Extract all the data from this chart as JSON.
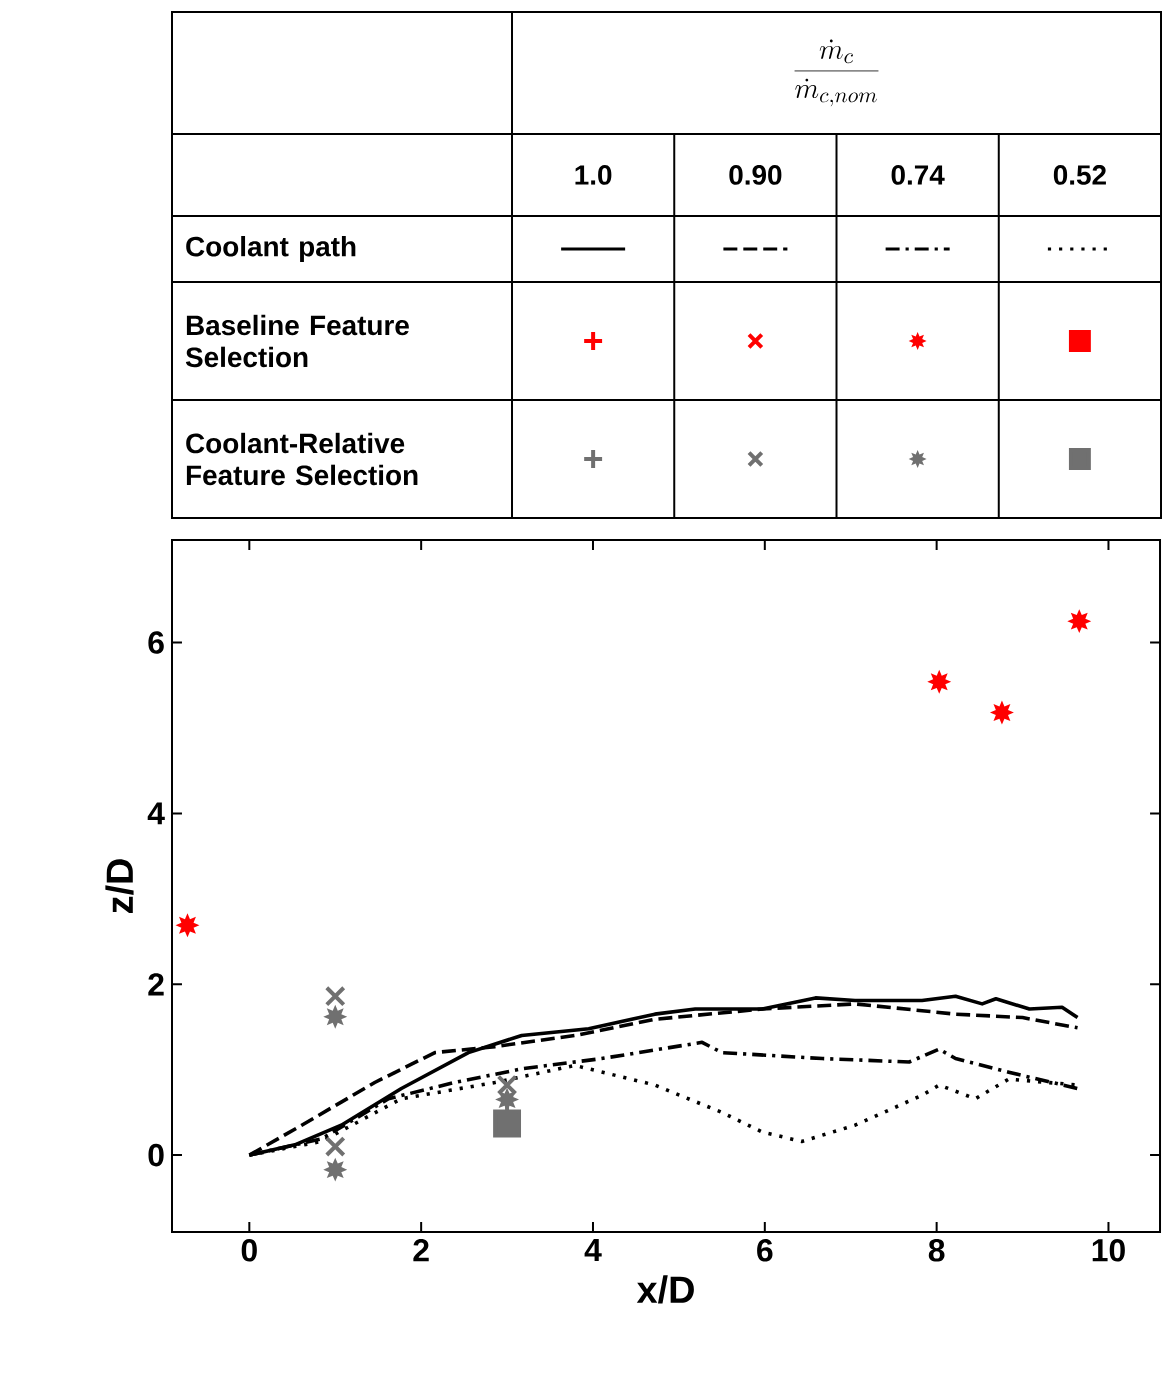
{
  "chart_data": {
    "type": "line",
    "xlabel": "x/D",
    "ylabel": "z/D",
    "legend_title": "\\frac{\\dot{m}_c}{\\dot{m}_{c,nom}}",
    "annotations": [
      "Coolant path",
      "Baseline Feature Selection",
      "Coolant-Relative Feature Selection",
      "1.0",
      "0.90",
      "0.74",
      "0.52"
    ],
    "xlim": [
      -0.9,
      10.6
    ],
    "ylim": [
      -0.9,
      7.2
    ],
    "xticks": [
      0,
      2,
      4,
      6,
      8,
      10
    ],
    "yticks": [
      0,
      2,
      4,
      6
    ],
    "series": [
      {
        "line_style": "solid",
        "color": "#000000",
        "marker": "none",
        "x": [
          0,
          0.53,
          1.07,
          1.77,
          2.55,
          3.17,
          3.95,
          4.72,
          5.19,
          5.97,
          6.59,
          7.05,
          7.83,
          8.22,
          8.53,
          8.69,
          9.08,
          9.46,
          9.64
        ],
        "values": [
          0,
          0.12,
          0.35,
          0.78,
          1.2,
          1.4,
          1.48,
          1.65,
          1.71,
          1.71,
          1.84,
          1.81,
          1.81,
          1.86,
          1.77,
          1.83,
          1.71,
          1.73,
          1.61
        ]
      },
      {
        "line_style": "dashed",
        "color": "#000000",
        "marker": "none",
        "x": [
          0,
          0.61,
          1.46,
          2.16,
          2.86,
          3.79,
          4.72,
          5.97,
          7.05,
          8.22,
          9.0,
          9.64
        ],
        "values": [
          0,
          0.35,
          0.85,
          1.2,
          1.27,
          1.4,
          1.59,
          1.71,
          1.77,
          1.65,
          1.61,
          1.49
        ]
      },
      {
        "line_style": "dashdot",
        "color": "#000000",
        "marker": "none",
        "x": [
          0,
          0.84,
          1.62,
          2.39,
          3.17,
          4.1,
          5.27,
          5.5,
          6.67,
          7.68,
          8.03,
          8.22,
          8.84,
          9.64
        ],
        "values": [
          0,
          0.19,
          0.66,
          0.85,
          1.01,
          1.13,
          1.32,
          1.2,
          1.13,
          1.09,
          1.24,
          1.13,
          0.97,
          0.78
        ]
      },
      {
        "line_style": "dotted",
        "color": "#000000",
        "marker": "none",
        "x": [
          0,
          0.84,
          1.77,
          2.86,
          3.79,
          4.72,
          5.5,
          5.97,
          6.43,
          7.05,
          7.83,
          8.03,
          8.45,
          8.84,
          9.64
        ],
        "values": [
          0,
          0.16,
          0.66,
          0.85,
          1.05,
          0.82,
          0.5,
          0.27,
          0.16,
          0.35,
          0.7,
          0.82,
          0.66,
          0.89,
          0.82
        ]
      },
      {
        "type": "scatter",
        "marker": "plus",
        "color": "#ff0000"
      },
      {
        "type": "scatter",
        "marker": "cross",
        "color": "#ff0000"
      },
      {
        "type": "scatter",
        "marker": "star",
        "color": "#ff0000",
        "x": [
          -0.72,
          8.03,
          8.76,
          9.66
        ],
        "values": [
          2.69,
          5.54,
          5.18,
          6.25
        ]
      },
      {
        "type": "scatter",
        "marker": "square",
        "color": "#ff0000"
      },
      {
        "type": "scatter",
        "marker": "plus",
        "color": "#707070",
        "x": [
          3
        ],
        "values": [
          0.47
        ]
      },
      {
        "type": "scatter",
        "marker": "cross",
        "color": "#707070",
        "x": [
          1,
          1,
          3
        ],
        "values": [
          1.86,
          0.1,
          0.82
        ]
      },
      {
        "type": "scatter",
        "marker": "star",
        "color": "#707070",
        "x": [
          1,
          1,
          3
        ],
        "values": [
          1.62,
          -0.17,
          0.65
        ]
      },
      {
        "type": "scatter",
        "marker": "square",
        "color": "#707070",
        "x": [
          3
        ],
        "values": [
          0.37
        ]
      }
    ]
  }
}
